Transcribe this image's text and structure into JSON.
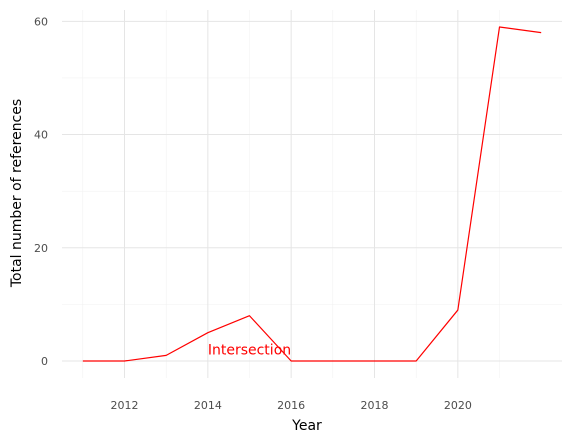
{
  "chart_data": {
    "type": "line",
    "title": "",
    "xlabel": "Year",
    "ylabel": "Total number of references",
    "xlim": [
      2010.5,
      2022.5
    ],
    "ylim": [
      -3,
      62
    ],
    "x_ticks": [
      2012,
      2014,
      2016,
      2018,
      2020
    ],
    "y_ticks": [
      0,
      20,
      40,
      60
    ],
    "grid": true,
    "legend": "none",
    "series": [
      {
        "color": "#ff0000",
        "points": [
          {
            "x": 2011,
            "y": 0
          },
          {
            "x": 2012,
            "y": 0
          },
          {
            "x": 2013,
            "y": 1
          },
          {
            "x": 2014,
            "y": 5
          },
          {
            "x": 2015,
            "y": 8
          },
          {
            "x": 2016,
            "y": 0
          },
          {
            "x": 2017,
            "y": 0
          },
          {
            "x": 2018,
            "y": 0
          },
          {
            "x": 2019,
            "y": 0
          },
          {
            "x": 2020,
            "y": 9
          },
          {
            "x": 2021,
            "y": 59
          },
          {
            "x": 2022,
            "y": 58
          }
        ]
      }
    ],
    "annotations": [
      {
        "text": "Intersection",
        "x": 2015,
        "y": 2,
        "color": "#ff0000"
      }
    ]
  }
}
